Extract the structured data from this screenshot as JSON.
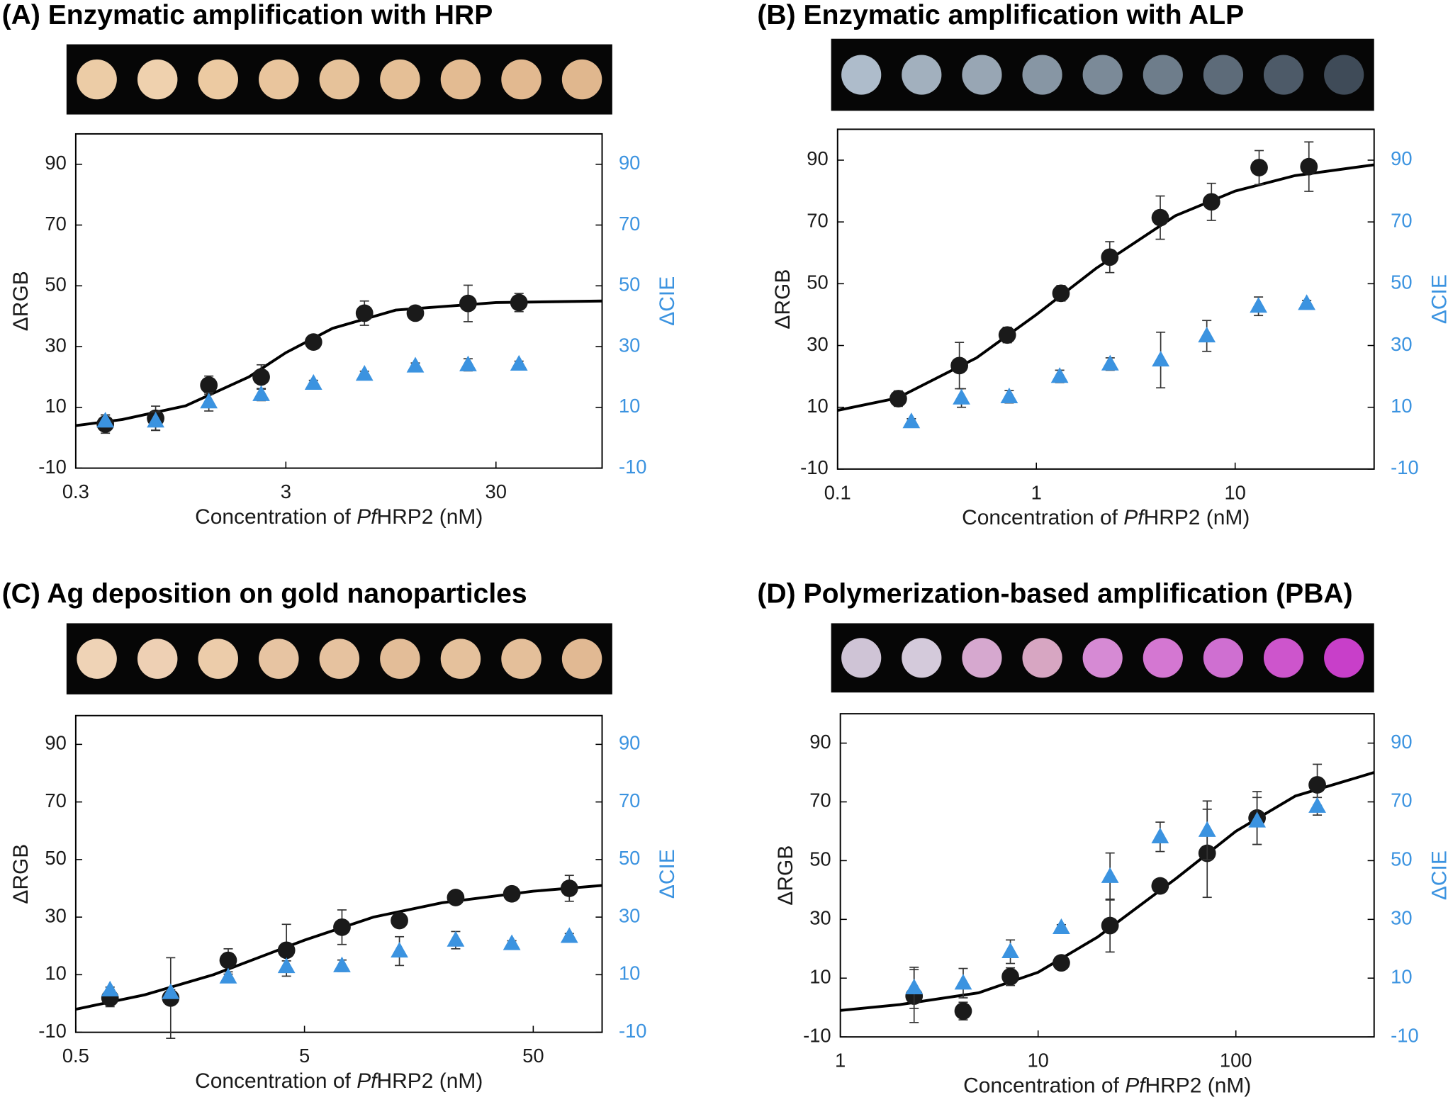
{
  "chart_data": [
    {
      "type": "scatter",
      "title": "(A) Enzymatic amplification with HRP",
      "strip_colors": [
        "#eccca6",
        "#efd1ae",
        "#eccaa2",
        "#e9c59d",
        "#e6c29a",
        "#e5bf96",
        "#e3bb92",
        "#e2b990",
        "#e0b78e"
      ],
      "x_label": [
        "Concentration of ",
        "Pf",
        "HRP2 (nM)"
      ],
      "y_label": "ΔRGB",
      "y2_label": "ΔCIE",
      "xscale": "log",
      "xlim": [
        0.3,
        96
      ],
      "xticks": [
        0.3,
        3,
        30
      ],
      "ylim": [
        -10,
        100
      ],
      "yticks": [
        -10,
        10,
        30,
        50,
        70,
        90
      ],
      "y2lim": [
        -10,
        100
      ],
      "y2ticks": [
        -10,
        10,
        30,
        50,
        70,
        90
      ],
      "series": [
        {
          "marker": "circle",
          "color": "#1a1a1a",
          "x": [
            0.415,
            0.72,
            1.29,
            2.29,
            4.06,
            7.1,
            12.4,
            22.1,
            38.6
          ],
          "values": [
            4.5,
            6.4,
            17.3,
            20,
            31.5,
            41,
            41,
            44.2,
            44.5
          ],
          "errors": [
            3,
            4,
            3,
            4,
            2,
            4,
            2,
            6,
            3
          ]
        },
        {
          "marker": "triangle",
          "color": "#3b93e0",
          "axis": "y2",
          "x": [
            0.415,
            0.72,
            1.29,
            2.29,
            4.06,
            7.1,
            12.4,
            22.1,
            38.6
          ],
          "values": [
            5.5,
            5.5,
            11.8,
            14.2,
            17.9,
            20.9,
            23.6,
            24,
            24.2
          ],
          "errors": [
            2,
            3,
            3,
            2,
            1,
            1,
            1,
            2,
            1
          ]
        }
      ],
      "fit": {
        "color": "#000000",
        "x": [
          0.3,
          0.5,
          1,
          2,
          3,
          5,
          10,
          30,
          96
        ],
        "values": [
          4,
          6,
          10.5,
          20,
          28,
          36,
          42,
          44.5,
          45
        ]
      }
    },
    {
      "type": "scatter",
      "title": "(B) Enzymatic amplification with ALP",
      "strip_colors": [
        "#aebccb",
        "#a2b0be",
        "#98a6b4",
        "#8796a4",
        "#7b8a98",
        "#6e7d8b",
        "#5d6b79",
        "#4d5a68",
        "#3f4b58"
      ],
      "x_label": [
        "Concentration of ",
        "Pf",
        "HRP2 (nM)"
      ],
      "y_label": "ΔRGB",
      "y2_label": "ΔCIE",
      "xscale": "log",
      "xlim": [
        0.1,
        50
      ],
      "xticks": [
        0.1,
        1,
        10
      ],
      "ylim": [
        -10,
        100
      ],
      "yticks": [
        -10,
        10,
        30,
        50,
        70,
        90
      ],
      "y2lim": [
        -10,
        100
      ],
      "y2ticks": [
        -10,
        10,
        30,
        50,
        70,
        90
      ],
      "series": [
        {
          "marker": "circle",
          "color": "#1a1a1a",
          "x": [
            0.202,
            0.41,
            0.714,
            1.33,
            2.34,
            4.2,
            7.6,
            13.2,
            23.5
          ],
          "values": [
            12.8,
            23.5,
            33.4,
            46.9,
            58.6,
            71.4,
            76.5,
            87.6,
            87.9
          ],
          "errors": [
            2.5,
            7.5,
            2.5,
            2.5,
            5,
            7,
            6,
            5.5,
            8
          ]
        },
        {
          "marker": "triangle",
          "color": "#3b93e0",
          "axis": "y2",
          "x": [
            0.235,
            0.42,
            0.73,
            1.31,
            2.35,
            4.22,
            7.2,
            13.1,
            22.9
          ],
          "values": [
            5.3,
            13,
            13.4,
            20,
            24,
            25.3,
            33.1,
            42.7,
            43.6
          ],
          "errors": [
            1,
            3,
            2,
            2,
            2,
            9,
            5,
            3,
            1
          ]
        }
      ],
      "fit": {
        "color": "#000000",
        "x": [
          0.1,
          0.2,
          0.5,
          1,
          2,
          5,
          10,
          20,
          50
        ],
        "values": [
          9,
          13,
          26,
          40,
          55,
          72,
          80,
          85,
          88.5
        ]
      }
    },
    {
      "type": "scatter",
      "title": "(C) Ag deposition on gold nanoparticles",
      "strip_colors": [
        "#efd3b6",
        "#eed0b4",
        "#ecccaa",
        "#e7c4a2",
        "#e6c29f",
        "#e3bd98",
        "#e5c19c",
        "#e4bf9a",
        "#e1b993"
      ],
      "x_label": [
        "Concentration of ",
        "Pf",
        "HRP2 (nM)"
      ],
      "y_label": "ΔRGB",
      "y2_label": "ΔCIE",
      "xscale": "log",
      "xlim": [
        0.5,
        100
      ],
      "xticks": [
        0.5,
        5,
        50
      ],
      "ylim": [
        -10,
        100
      ],
      "yticks": [
        -10,
        10,
        30,
        50,
        70,
        90
      ],
      "y2lim": [
        -10,
        100
      ],
      "y2ticks": [
        -10,
        10,
        30,
        50,
        70,
        90
      ],
      "series": [
        {
          "marker": "circle",
          "color": "#1a1a1a",
          "x": [
            0.706,
            1.3,
            2.32,
            4.17,
            7.29,
            13,
            22.9,
            40.3,
            71.9
          ],
          "values": [
            1.9,
            1.9,
            15,
            18.5,
            26.5,
            28.8,
            36.8,
            38.1,
            40
          ],
          "errors": [
            3,
            14,
            4,
            9,
            6,
            1,
            1,
            1,
            4.5
          ]
        },
        {
          "marker": "triangle",
          "color": "#3b93e0",
          "axis": "y2",
          "x": [
            0.706,
            1.3,
            2.32,
            4.17,
            7.29,
            13,
            22.9,
            40.3,
            71.9
          ],
          "values": [
            4.7,
            3.8,
            9.2,
            12.8,
            13.1,
            18.2,
            22,
            20.8,
            23.3
          ],
          "errors": [
            1,
            1,
            1,
            2,
            2,
            5,
            3,
            1,
            1
          ]
        }
      ],
      "fit": {
        "color": "#000000",
        "x": [
          0.5,
          1,
          2,
          5,
          10,
          20,
          50,
          100
        ],
        "values": [
          -2,
          3,
          10,
          22,
          30,
          35,
          39,
          41
        ]
      }
    },
    {
      "type": "scatter",
      "title": "(D) Polymerization-based amplification (PBA)",
      "strip_colors": [
        "#cfc4d6",
        "#d4cadb",
        "#d6a8cf",
        "#d7a6c2",
        "#d68ad4",
        "#d477d2",
        "#cf6fd1",
        "#cd55cc",
        "#c83fc9"
      ],
      "x_label": [
        "Concentration of ",
        "Pf",
        "HRP2 (nM)"
      ],
      "y_label": "ΔRGB",
      "y2_label": "ΔCIE",
      "xscale": "log",
      "xlim": [
        1,
        500
      ],
      "xticks": [
        1,
        10,
        100
      ],
      "ylim": [
        -10,
        100
      ],
      "yticks": [
        -10,
        10,
        30,
        50,
        70,
        90
      ],
      "y2lim": [
        -10,
        100
      ],
      "y2ticks": [
        -10,
        10,
        30,
        50,
        70,
        90
      ],
      "series": [
        {
          "marker": "circle",
          "color": "#1a1a1a",
          "x": [
            2.36,
            4.18,
            7.24,
            13.1,
            23.1,
            41.4,
            71.6,
            128,
            258
          ],
          "values": [
            3.9,
            -1.2,
            10.5,
            15.2,
            27.9,
            41.4,
            52.5,
            64.5,
            75.8
          ],
          "errors": [
            9,
            3,
            3,
            1,
            9,
            2,
            15,
            9,
            7
          ]
        },
        {
          "marker": "triangle",
          "color": "#3b93e0",
          "axis": "y2",
          "x": [
            2.36,
            4.18,
            7.24,
            13.1,
            23.1,
            41.4,
            71.6,
            128,
            258
          ],
          "values": [
            6.7,
            8.3,
            19,
            27.2,
            44.6,
            58.1,
            60.3,
            63.5,
            68.5
          ],
          "errors": [
            7,
            5,
            4,
            1,
            8,
            5,
            10,
            8,
            3
          ]
        }
      ],
      "fit": {
        "color": "#000000",
        "x": [
          1,
          2,
          5,
          10,
          20,
          50,
          100,
          200,
          500
        ],
        "values": [
          -1,
          1,
          5,
          12,
          24,
          44,
          60,
          72,
          80
        ]
      }
    }
  ]
}
